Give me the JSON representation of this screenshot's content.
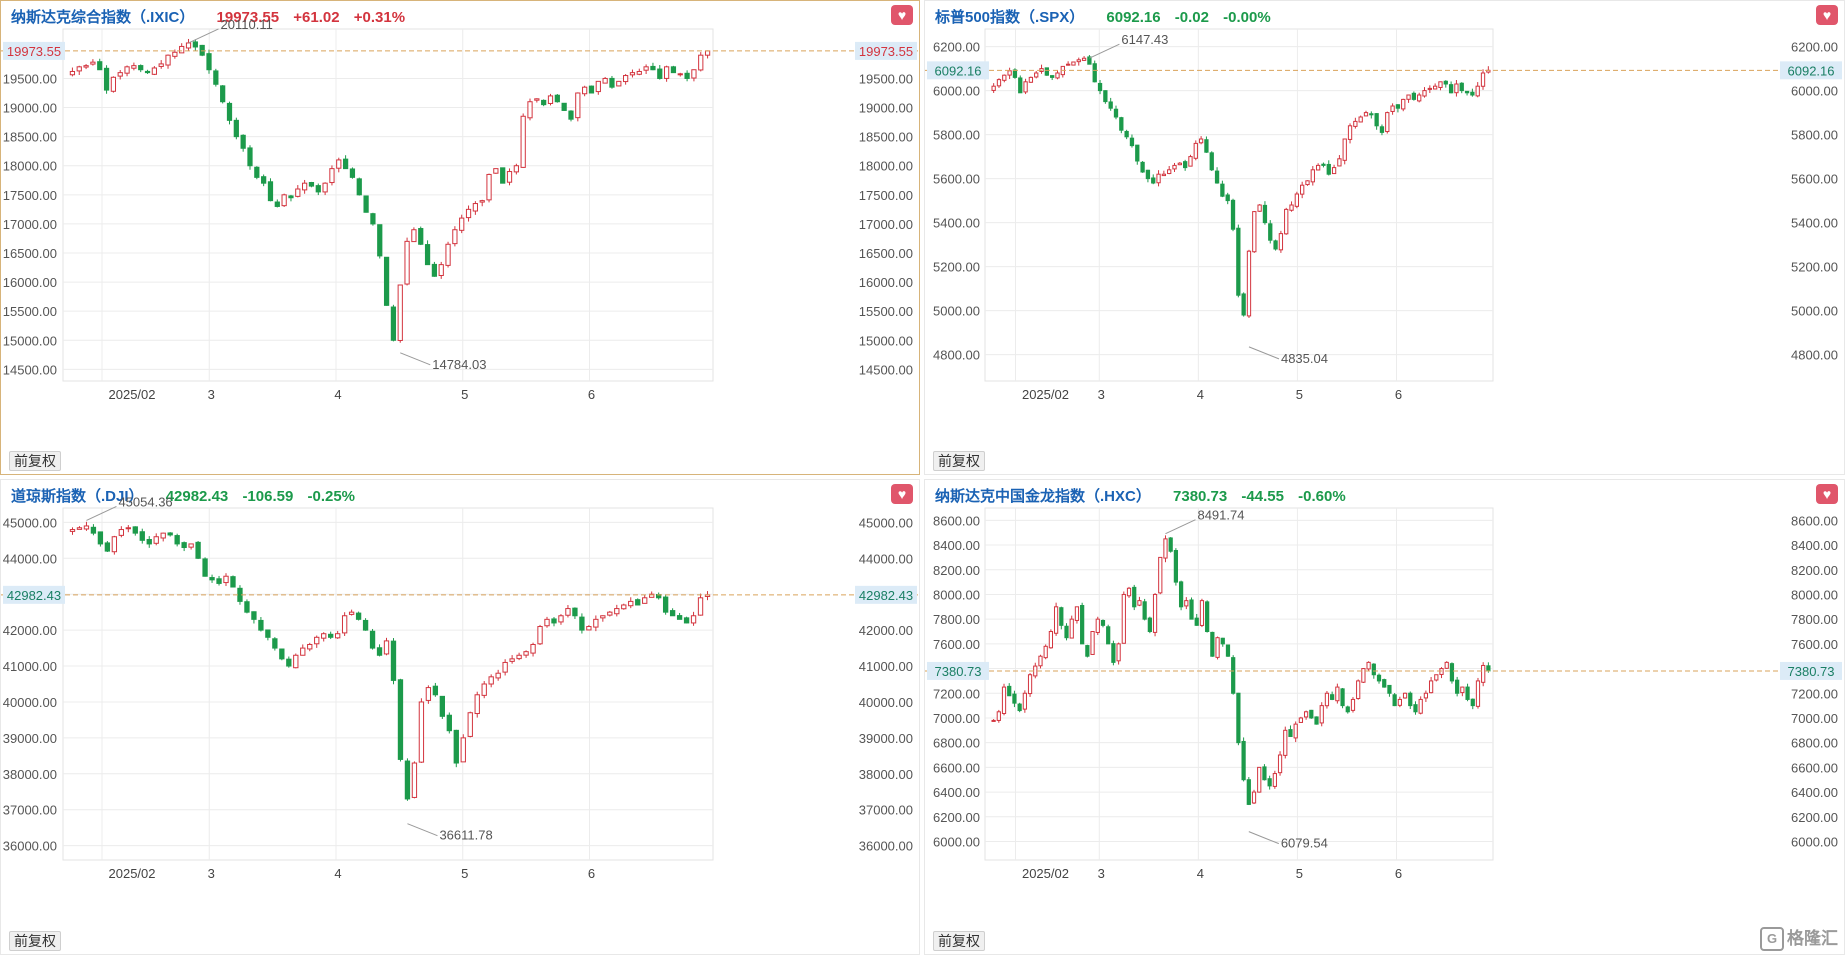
{
  "colors": {
    "up": "#d3343e",
    "down": "#1c9a4b",
    "ref_line": "#d9a35b",
    "grid": "#ececec"
  },
  "footer": {
    "adjust_label": "前复权",
    "logo_text": "格隆汇",
    "logo_icon": "gelonghui-logo-icon"
  },
  "panels": [
    {
      "title": "纳斯达克综合指数（.IXIC）",
      "price": "19973.55",
      "change": "+61.02",
      "pct": "+0.31%",
      "direction": "up",
      "y_labels": [
        "19500.00",
        "19000.00",
        "18500.00",
        "18000.00",
        "17500.00",
        "17000.00",
        "16500.00",
        "16000.00",
        "15500.00",
        "15000.00",
        "14500.00"
      ],
      "x_labels": [
        "2025/02",
        "3",
        "4",
        "5",
        "6"
      ],
      "current_label": "19973.55",
      "high_label": "20110.11",
      "low_label": "14784.03"
    },
    {
      "title": "标普500指数（.SPX）",
      "price": "6092.16",
      "change": "-0.02",
      "pct": "-0.00%",
      "direction": "down",
      "y_labels": [
        "6200.00",
        "6000.00",
        "5800.00",
        "5600.00",
        "5400.00",
        "5200.00",
        "5000.00",
        "4800.00"
      ],
      "x_labels": [
        "2025/02",
        "3",
        "4",
        "5",
        "6"
      ],
      "current_label": "6092.16",
      "high_label": "6147.43",
      "low_label": "4835.04"
    },
    {
      "title": "道琼斯指数（.DJI）",
      "price": "42982.43",
      "change": "-106.59",
      "pct": "-0.25%",
      "direction": "down",
      "y_labels": [
        "45000.00",
        "44000.00",
        "42000.00",
        "41000.00",
        "40000.00",
        "39000.00",
        "38000.00",
        "37000.00",
        "36000.00"
      ],
      "x_labels": [
        "2025/02",
        "3",
        "4",
        "5",
        "6"
      ],
      "current_label": "42982.43",
      "high_label": "45054.36",
      "low_label": "36611.78"
    },
    {
      "title": "纳斯达克中国金龙指数（.HXC）",
      "price": "7380.73",
      "change": "-44.55",
      "pct": "-0.60%",
      "direction": "down",
      "y_labels": [
        "8600.00",
        "8400.00",
        "8200.00",
        "8000.00",
        "7800.00",
        "7600.00",
        "7200.00",
        "7000.00",
        "6800.00",
        "6600.00",
        "6400.00",
        "6200.00",
        "6000.00"
      ],
      "x_labels": [
        "2025/02",
        "3",
        "4",
        "5",
        "6"
      ],
      "current_label": "7380.73",
      "high_label": "8491.74",
      "low_label": "6079.54"
    }
  ],
  "chart_data": [
    {
      "type": "candlestick",
      "title": "纳斯达克综合指数（.IXIC）",
      "x_ticks": [
        "2025/02",
        "3",
        "4",
        "5",
        "6"
      ],
      "y_ticks": [
        14500,
        15000,
        15500,
        16000,
        16500,
        17000,
        17500,
        18000,
        18500,
        19000,
        19500
      ],
      "ylim": [
        14300,
        20350
      ],
      "current": 19973.55,
      "high": 20110.11,
      "low": 14784.03,
      "grid": true,
      "closes": [
        19620,
        19700,
        19720,
        19780,
        19650,
        19300,
        19520,
        19600,
        19700,
        19720,
        19650,
        19600,
        19680,
        19750,
        19900,
        19950,
        20050,
        20110,
        20041,
        19900,
        19650,
        19400,
        19100,
        18780,
        18500,
        18300,
        18000,
        17800,
        17700,
        17400,
        17300,
        17500,
        17450,
        17600,
        17700,
        17650,
        17550,
        17700,
        17950,
        18100,
        17950,
        17800,
        17500,
        17200,
        17000,
        16450,
        15600,
        15000,
        15950,
        16700,
        16900,
        16650,
        16300,
        16100,
        16300,
        16650,
        16900,
        17100,
        17250,
        17350,
        17400,
        17850,
        17950,
        17700,
        17900,
        18000,
        18850,
        19100,
        19150,
        19050,
        19200,
        19100,
        18950,
        18800,
        19250,
        19350,
        19250,
        19450,
        19500,
        19350,
        19450,
        19550,
        19600,
        19620,
        19700,
        19650,
        19500,
        19700,
        19600,
        19580,
        19500,
        19650,
        19900,
        19973.55
      ]
    },
    {
      "type": "candlestick",
      "title": "标普500指数（.SPX）",
      "x_ticks": [
        "2025/02",
        "3",
        "4",
        "5",
        "6"
      ],
      "y_ticks": [
        4800,
        5000,
        5200,
        5400,
        5600,
        5800,
        6000,
        6200
      ],
      "ylim": [
        4680,
        6280
      ],
      "current": 6092.16,
      "high": 6147.43,
      "low": 4835.04,
      "grid": true,
      "closes": [
        6020,
        6050,
        6070,
        6090,
        6060,
        5990,
        6040,
        6060,
        6080,
        6100,
        6070,
        6060,
        6080,
        6110,
        6120,
        6130,
        6140,
        6147,
        6120,
        6040,
        6000,
        5950,
        5920,
        5880,
        5820,
        5790,
        5750,
        5680,
        5630,
        5600,
        5580,
        5620,
        5620,
        5640,
        5660,
        5670,
        5650,
        5700,
        5760,
        5780,
        5720,
        5640,
        5580,
        5520,
        5500,
        5370,
        5070,
        4980,
        5270,
        5450,
        5480,
        5400,
        5320,
        5280,
        5350,
        5460,
        5480,
        5530,
        5570,
        5590,
        5640,
        5660,
        5660,
        5620,
        5650,
        5690,
        5780,
        5840,
        5860,
        5880,
        5900,
        5890,
        5840,
        5810,
        5900,
        5930,
        5920,
        5960,
        5980,
        5960,
        5980,
        6000,
        6010,
        6020,
        6040,
        6030,
        5990,
        6030,
        6000,
        5990,
        5980,
        6020,
        6080,
        6092.16
      ]
    },
    {
      "type": "candlestick",
      "title": "道琼斯指数（.DJI）",
      "x_ticks": [
        "2025/02",
        "3",
        "4",
        "5",
        "6"
      ],
      "y_ticks": [
        36000,
        37000,
        38000,
        39000,
        40000,
        41000,
        42000,
        43000,
        44000,
        45000
      ],
      "ylim": [
        35600,
        45400
      ],
      "current": 42982.43,
      "high": 45054.36,
      "low": 36611.78,
      "grid": true,
      "closes": [
        44800,
        44850,
        44900,
        44700,
        44400,
        44200,
        44600,
        44800,
        44850,
        44700,
        44500,
        44400,
        44600,
        44700,
        44650,
        44400,
        44300,
        44400,
        44000,
        43500,
        43400,
        43300,
        43500,
        43200,
        42800,
        42500,
        42300,
        42000,
        41800,
        41500,
        41200,
        41000,
        41300,
        41500,
        41600,
        41800,
        41900,
        41800,
        41900,
        42400,
        42500,
        42300,
        42000,
        41500,
        41300,
        41700,
        40600,
        38400,
        37300,
        38300,
        40000,
        40400,
        40200,
        39600,
        39200,
        38300,
        39000,
        39700,
        40200,
        40500,
        40700,
        40800,
        41100,
        41200,
        41300,
        41400,
        41600,
        42100,
        42300,
        42200,
        42400,
        42600,
        42400,
        42000,
        42100,
        42300,
        42400,
        42500,
        42600,
        42700,
        42800,
        42700,
        42900,
        43000,
        42900,
        42500,
        42400,
        42300,
        42200,
        42400,
        42900,
        42982.43
      ]
    },
    {
      "type": "candlestick",
      "title": "纳斯达克中国金龙指数（.HXC）",
      "x_ticks": [
        "2025/02",
        "3",
        "4",
        "5",
        "6"
      ],
      "y_ticks": [
        6000,
        6200,
        6400,
        6600,
        6800,
        7000,
        7200,
        7400,
        7600,
        7800,
        8000,
        8200,
        8400,
        8600
      ],
      "ylim": [
        5850,
        8700
      ],
      "current": 7380.73,
      "high": 8491.74,
      "low": 6079.54,
      "grid": true,
      "closes": [
        6980,
        7050,
        7250,
        7180,
        7120,
        7060,
        7200,
        7350,
        7420,
        7500,
        7580,
        7700,
        7900,
        7750,
        7650,
        7800,
        7900,
        7600,
        7500,
        7700,
        7800,
        7750,
        7600,
        7450,
        7600,
        8000,
        8050,
        7900,
        7950,
        7800,
        7700,
        8000,
        8300,
        8450,
        8350,
        8100,
        7900,
        7950,
        7800,
        7750,
        7950,
        7700,
        7500,
        7650,
        7600,
        7500,
        7200,
        6800,
        6500,
        6300,
        6400,
        6600,
        6500,
        6450,
        6550,
        6700,
        6900,
        6850,
        6950,
        7000,
        7050,
        7000,
        6950,
        7100,
        7200,
        7150,
        7250,
        7100,
        7050,
        7150,
        7300,
        7400,
        7450,
        7350,
        7300,
        7250,
        7200,
        7100,
        7150,
        7200,
        7100,
        7050,
        7150,
        7200,
        7300,
        7350,
        7400,
        7450,
        7300,
        7200,
        7250,
        7150,
        7100,
        7300,
        7425,
        7380.73
      ]
    }
  ]
}
